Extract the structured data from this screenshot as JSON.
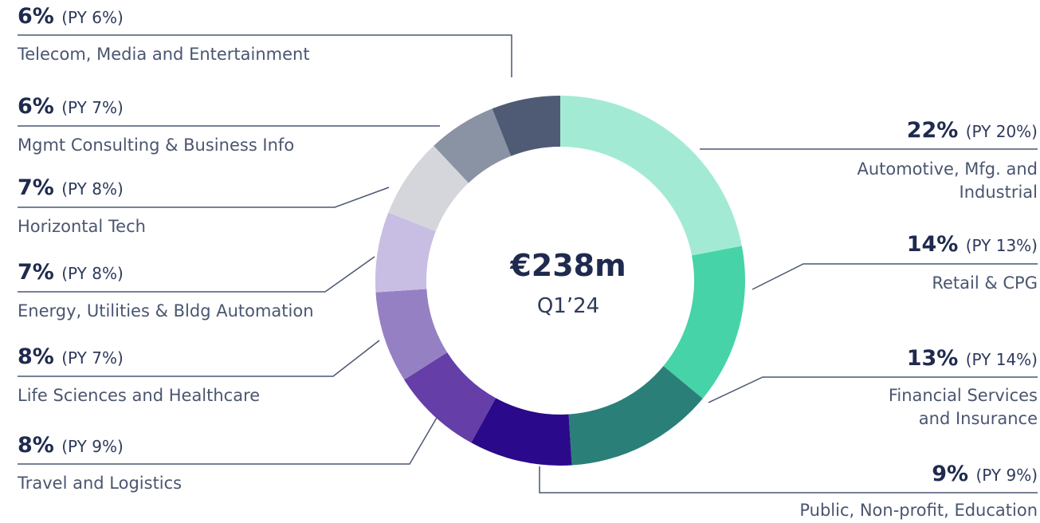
{
  "chart_data": {
    "type": "donut",
    "center_value": "€238m",
    "center_label": "Q1’24",
    "categories": [
      "Automotive, Mfg. and Industrial",
      "Retail & CPG",
      "Financial Services and Insurance",
      "Public, Non-profit, Education",
      "Travel and Logistics",
      "Life Sciences and Healthcare",
      "Energy, Utilities & Bldg Automation",
      "Horizontal Tech",
      "Mgmt Consulting & Business Info",
      "Telecom, Media and Entertainment"
    ],
    "values": [
      22,
      14,
      13,
      9,
      8,
      8,
      7,
      7,
      6,
      6
    ],
    "value_labels": [
      "22%",
      "14%",
      "13%",
      "9%",
      "8%",
      "8%",
      "7%",
      "7%",
      "6%",
      "6%"
    ],
    "prior_year": [
      "(PY 20%)",
      "(PY 13%)",
      "(PY 14%)",
      "(PY 9%)",
      "(PY 9%)",
      "(PY 7%)",
      "(PY 8%)",
      "(PY 8%)",
      "(PY 7%)",
      "(PY 6%)"
    ],
    "colors": [
      "#a3ead5",
      "#46d3a8",
      "#2b7f79",
      "#2a0a8a",
      "#653ea8",
      "#9580c4",
      "#c8bde2",
      "#d4d6dc",
      "#8a93a3",
      "#4f5b75"
    ]
  }
}
